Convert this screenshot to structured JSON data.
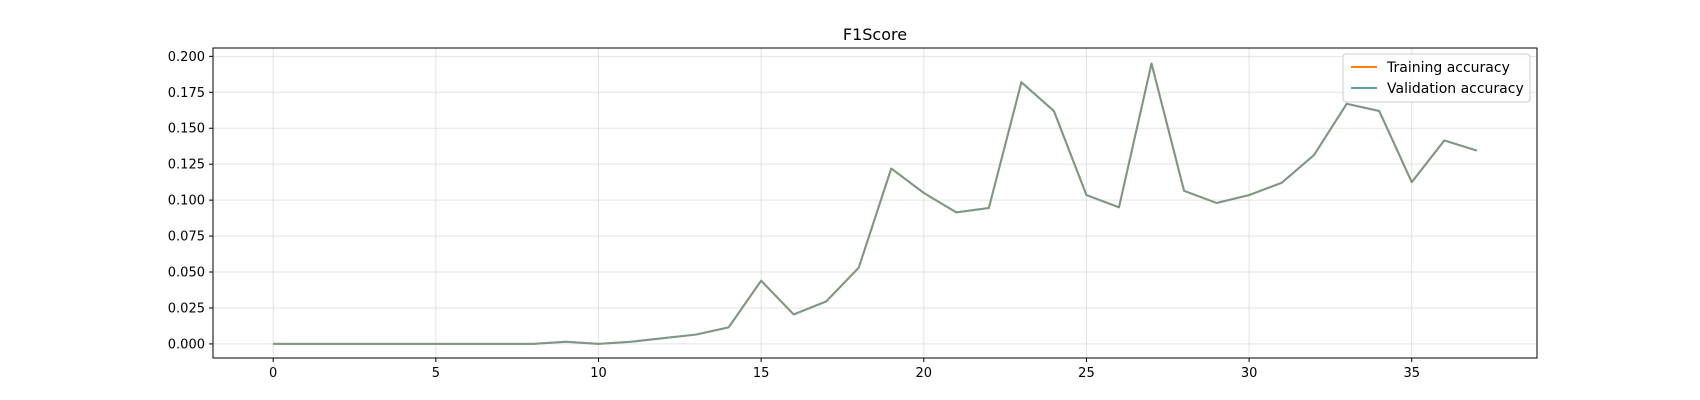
{
  "chart_data": {
    "type": "line",
    "title": "F1Score",
    "xlabel": "",
    "ylabel": "",
    "xlim": [
      -1.85,
      38.85
    ],
    "ylim": [
      -0.0098,
      0.2058
    ],
    "xticks": [
      0,
      5,
      10,
      15,
      20,
      25,
      30,
      35
    ],
    "xtick_labels": [
      "0",
      "5",
      "10",
      "15",
      "20",
      "25",
      "30",
      "35"
    ],
    "yticks": [
      0.0,
      0.025,
      0.05,
      0.075,
      0.1,
      0.125,
      0.15,
      0.175,
      0.2
    ],
    "ytick_labels": [
      "0.000",
      "0.025",
      "0.050",
      "0.075",
      "0.100",
      "0.125",
      "0.150",
      "0.175",
      "0.200"
    ],
    "grid": true,
    "legend_position": "top-right",
    "x": [
      0,
      1,
      2,
      3,
      4,
      5,
      6,
      7,
      8,
      9,
      10,
      11,
      12,
      13,
      14,
      15,
      16,
      17,
      18,
      19,
      20,
      21,
      22,
      23,
      24,
      25,
      26,
      27,
      28,
      29,
      30,
      31,
      32,
      33,
      34,
      35,
      36,
      37
    ],
    "series": [
      {
        "name": "Training accuracy",
        "color": "#ff7f0e",
        "values": [
          0,
          0,
          0,
          0,
          0,
          0,
          0,
          0,
          0,
          0.0015,
          0,
          0.0015,
          0.004,
          0.0065,
          0.0115,
          0.044,
          0.0205,
          0.0295,
          0.053,
          0.122,
          0.105,
          0.0915,
          0.0945,
          0.182,
          0.162,
          0.1035,
          0.095,
          0.195,
          0.1065,
          0.098,
          0.1035,
          0.112,
          0.1315,
          0.167,
          0.162,
          0.1125,
          0.1415,
          0.1345
        ]
      },
      {
        "name": "Validation accuracy",
        "color": "#5f9ea0",
        "values": [
          0,
          0,
          0,
          0,
          0,
          0,
          0,
          0,
          0,
          0.0015,
          0,
          0.0015,
          0.004,
          0.0065,
          0.0115,
          0.044,
          0.0205,
          0.0295,
          0.053,
          0.122,
          0.105,
          0.0915,
          0.0945,
          0.182,
          0.162,
          0.1035,
          0.095,
          0.195,
          0.1065,
          0.098,
          0.1035,
          0.112,
          0.1315,
          0.167,
          0.162,
          0.1125,
          0.1415,
          0.1345
        ]
      }
    ]
  }
}
